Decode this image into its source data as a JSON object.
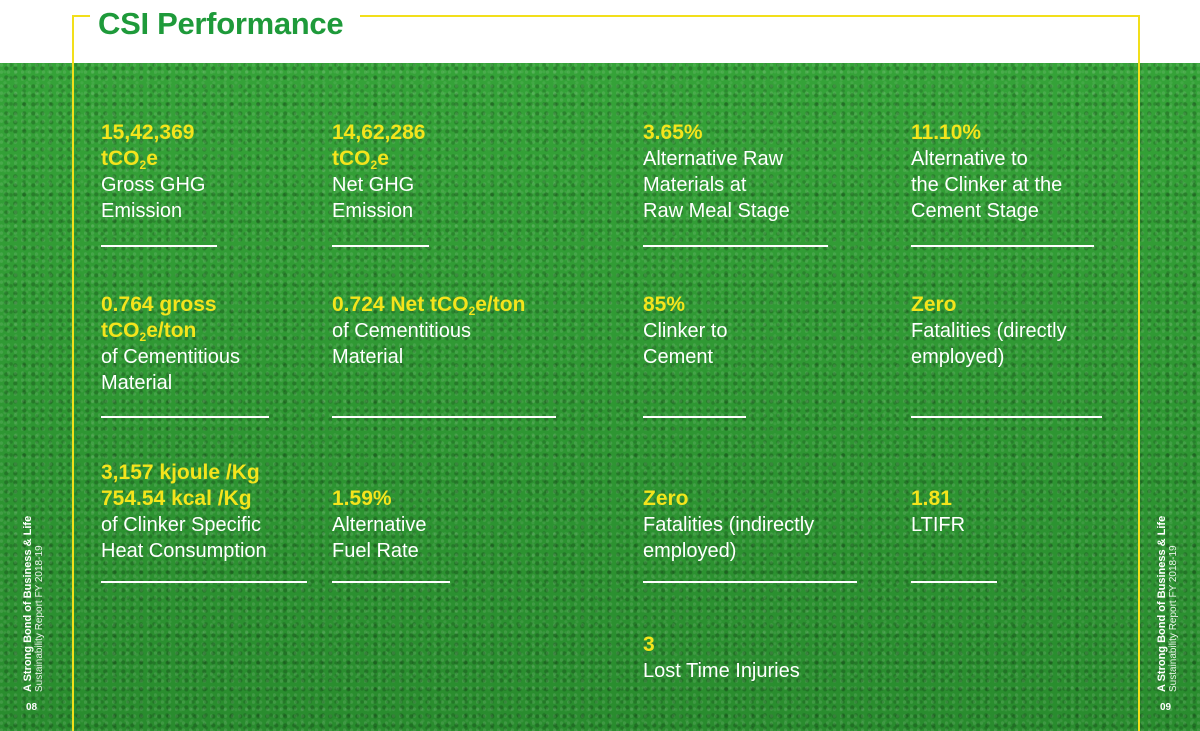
{
  "header": {
    "title": "CSI Performance"
  },
  "colors": {
    "accent_yellow": "#f4e41c",
    "title_green": "#1e9a3a",
    "background_green": "#2f9a33"
  },
  "metrics": [
    {
      "id": "gross-ghg",
      "value_lines": [
        "15,42,369",
        "tCO|2|e"
      ],
      "desc_lines": [
        "Gross GHG",
        "Emission"
      ]
    },
    {
      "id": "net-ghg",
      "value_lines": [
        "14,62,286",
        "tCO|2|e"
      ],
      "desc_lines": [
        "Net GHG",
        "Emission"
      ]
    },
    {
      "id": "alt-raw",
      "value_lines": [
        "3.65%"
      ],
      "desc_lines": [
        "Alternative Raw",
        "Materials at",
        "Raw Meal Stage"
      ]
    },
    {
      "id": "alt-clinker",
      "value_lines": [
        "11.10%"
      ],
      "desc_lines": [
        "Alternative to",
        "the Clinker at the",
        "Cement Stage"
      ]
    },
    {
      "id": "gross-intensity",
      "value_lines": [
        "0.764 gross",
        "tCO|2|e/ton"
      ],
      "desc_lines": [
        "of Cementitious",
        "Material"
      ]
    },
    {
      "id": "net-intensity",
      "value_lines": [
        "0.724 Net tCO|2|e/ton"
      ],
      "desc_lines": [
        "of Cementitious",
        "Material"
      ]
    },
    {
      "id": "clinker-cement",
      "value_lines": [
        "85%"
      ],
      "desc_lines": [
        "Clinker to",
        "Cement"
      ]
    },
    {
      "id": "fatalities-direct",
      "value_lines": [
        "Zero"
      ],
      "desc_lines": [
        "Fatalities (directly",
        "employed)"
      ]
    },
    {
      "id": "heat-consumption",
      "value_lines": [
        "3,157 kjoule /Kg",
        "754.54 kcal /Kg"
      ],
      "desc_lines": [
        "of Clinker Specific",
        "Heat Consumption"
      ]
    },
    {
      "id": "alt-fuel",
      "value_lines": [
        "1.59%"
      ],
      "desc_lines": [
        "Alternative",
        "Fuel Rate"
      ]
    },
    {
      "id": "fatalities-indirect",
      "value_lines": [
        "Zero"
      ],
      "desc_lines": [
        "Fatalities (indirectly",
        "employed)"
      ]
    },
    {
      "id": "ltifr",
      "value_lines": [
        "1.81"
      ],
      "desc_lines": [
        "LTIFR"
      ]
    },
    {
      "id": "lti",
      "value_lines": [
        "3"
      ],
      "desc_lines": [
        "Lost Time Injuries"
      ]
    }
  ],
  "footer": {
    "left": {
      "line1": "A Strong Bond of Business & Life",
      "line2": "Sustainability Report FY 2018-19",
      "page": "08"
    },
    "right": {
      "line1": "A Strong Bond of Business & Life",
      "line2": "Sustainability Report FY 2018-19",
      "page": "09"
    }
  }
}
